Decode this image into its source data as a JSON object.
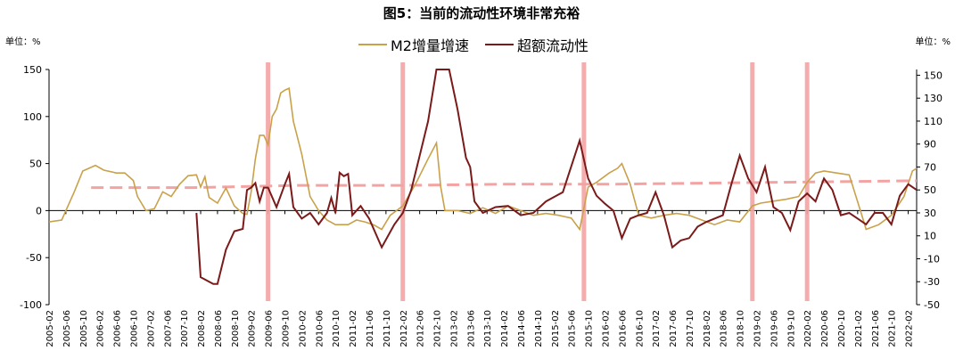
{
  "chart_data": {
    "type": "line",
    "title": "图5：当前的流动性环境非常充裕",
    "unit_left": "单位：%",
    "unit_right": "单位：%",
    "left_axis": {
      "ylim": [
        -100,
        150
      ],
      "ticks": [
        -100,
        -50,
        0,
        50,
        100,
        150
      ]
    },
    "right_axis": {
      "ylim": [
        -50,
        155
      ],
      "ticks": [
        -50,
        -30,
        -10,
        10,
        30,
        50,
        70,
        90,
        110,
        130,
        150
      ]
    },
    "x_tick_labels": [
      "2005-02",
      "2005-06",
      "2005-10",
      "2006-02",
      "2006-06",
      "2006-10",
      "2007-02",
      "2007-06",
      "2007-10",
      "2008-02",
      "2008-06",
      "2008-10",
      "2009-02",
      "2009-06",
      "2009-10",
      "2010-02",
      "2010-06",
      "2010-10",
      "2011-02",
      "2011-06",
      "2011-10",
      "2012-02",
      "2012-06",
      "2012-10",
      "2013-02",
      "2013-06",
      "2013-10",
      "2014-02",
      "2014-06",
      "2014-10",
      "2015-02",
      "2015-06",
      "2015-10",
      "2016-02",
      "2016-06",
      "2016-10",
      "2017-02",
      "2017-06",
      "2017-10",
      "2018-02",
      "2018-06",
      "2018-10",
      "2019-02",
      "2019-06",
      "2019-10",
      "2020-02",
      "2020-06",
      "2020-10",
      "2021-02",
      "2021-06",
      "2021-10",
      "2022-02"
    ],
    "series": [
      {
        "name": "M2增量增速",
        "axis": "left",
        "color": "#c9a14a",
        "points": [
          [
            "2005-02",
            -12
          ],
          [
            "2005-05",
            -10
          ],
          [
            "2005-08",
            20
          ],
          [
            "2005-10",
            42
          ],
          [
            "2006-01",
            48
          ],
          [
            "2006-03",
            43
          ],
          [
            "2006-06",
            40
          ],
          [
            "2006-08",
            40
          ],
          [
            "2006-10",
            32
          ],
          [
            "2006-11",
            15
          ],
          [
            "2007-01",
            0
          ],
          [
            "2007-03",
            2
          ],
          [
            "2007-05",
            20
          ],
          [
            "2007-07",
            15
          ],
          [
            "2007-09",
            28
          ],
          [
            "2007-11",
            37
          ],
          [
            "2008-01",
            38
          ],
          [
            "2008-02",
            25
          ],
          [
            "2008-03",
            36
          ],
          [
            "2008-04",
            14
          ],
          [
            "2008-06",
            8
          ],
          [
            "2008-08",
            24
          ],
          [
            "2008-10",
            5
          ],
          [
            "2008-12",
            -3
          ],
          [
            "2009-01",
            -4
          ],
          [
            "2009-02",
            20
          ],
          [
            "2009-03",
            55
          ],
          [
            "2009-04",
            80
          ],
          [
            "2009-05",
            80
          ],
          [
            "2009-06",
            70
          ],
          [
            "2009-07",
            100
          ],
          [
            "2009-08",
            108
          ],
          [
            "2009-09",
            125
          ],
          [
            "2009-10",
            128
          ],
          [
            "2009-11",
            130
          ],
          [
            "2009-12",
            95
          ],
          [
            "2010-02",
            60
          ],
          [
            "2010-04",
            15
          ],
          [
            "2010-06",
            0
          ],
          [
            "2010-08",
            -10
          ],
          [
            "2010-10",
            -15
          ],
          [
            "2011-01",
            -15
          ],
          [
            "2011-03",
            -10
          ],
          [
            "2011-05",
            -12
          ],
          [
            "2011-07",
            -15
          ],
          [
            "2011-09",
            -20
          ],
          [
            "2011-11",
            -5
          ],
          [
            "2012-02",
            5
          ],
          [
            "2012-05",
            28
          ],
          [
            "2012-08",
            55
          ],
          [
            "2012-10",
            72
          ],
          [
            "2012-11",
            25
          ],
          [
            "2012-12",
            0
          ],
          [
            "2013-03",
            0
          ],
          [
            "2013-06",
            -3
          ],
          [
            "2013-09",
            3
          ],
          [
            "2013-12",
            -3
          ],
          [
            "2014-03",
            5
          ],
          [
            "2014-06",
            0
          ],
          [
            "2014-09",
            -5
          ],
          [
            "2014-12",
            -3
          ],
          [
            "2015-03",
            -5
          ],
          [
            "2015-06",
            -8
          ],
          [
            "2015-08",
            -20
          ],
          [
            "2015-10",
            25
          ],
          [
            "2015-12",
            30
          ],
          [
            "2016-03",
            40
          ],
          [
            "2016-05",
            45
          ],
          [
            "2016-06",
            50
          ],
          [
            "2016-08",
            28
          ],
          [
            "2016-10",
            -5
          ],
          [
            "2017-01",
            -8
          ],
          [
            "2017-04",
            -5
          ],
          [
            "2017-07",
            -3
          ],
          [
            "2017-10",
            -5
          ],
          [
            "2018-01",
            -10
          ],
          [
            "2018-04",
            -15
          ],
          [
            "2018-07",
            -10
          ],
          [
            "2018-10",
            -12
          ],
          [
            "2019-01",
            5
          ],
          [
            "2019-03",
            8
          ],
          [
            "2019-06",
            10
          ],
          [
            "2019-09",
            12
          ],
          [
            "2019-12",
            15
          ],
          [
            "2020-02",
            30
          ],
          [
            "2020-04",
            40
          ],
          [
            "2020-06",
            42
          ],
          [
            "2020-09",
            40
          ],
          [
            "2020-12",
            38
          ],
          [
            "2021-03",
            -5
          ],
          [
            "2021-04",
            -20
          ],
          [
            "2021-07",
            -15
          ],
          [
            "2021-10",
            -5
          ],
          [
            "2022-01",
            15
          ],
          [
            "2022-03",
            42
          ],
          [
            "2022-04",
            45
          ]
        ]
      },
      {
        "name": "超额流动性",
        "axis": "right",
        "color": "#7a1a1a",
        "points": [
          [
            "2008-01",
            30
          ],
          [
            "2008-02",
            -26
          ],
          [
            "2008-04",
            -30
          ],
          [
            "2008-05",
            -32
          ],
          [
            "2008-06",
            -32
          ],
          [
            "2008-08",
            -2
          ],
          [
            "2008-10",
            14
          ],
          [
            "2008-12",
            16
          ],
          [
            "2009-01",
            50
          ],
          [
            "2009-02",
            52
          ],
          [
            "2009-03",
            56
          ],
          [
            "2009-04",
            40
          ],
          [
            "2009-05",
            52
          ],
          [
            "2009-06",
            52
          ],
          [
            "2009-08",
            35
          ],
          [
            "2009-10",
            55
          ],
          [
            "2009-11",
            64
          ],
          [
            "2009-12",
            35
          ],
          [
            "2010-02",
            25
          ],
          [
            "2010-04",
            30
          ],
          [
            "2010-06",
            20
          ],
          [
            "2010-08",
            30
          ],
          [
            "2010-09",
            43
          ],
          [
            "2010-10",
            30
          ],
          [
            "2010-11",
            65
          ],
          [
            "2010-12",
            62
          ],
          [
            "2011-01",
            64
          ],
          [
            "2011-02",
            28
          ],
          [
            "2011-04",
            36
          ],
          [
            "2011-06",
            25
          ],
          [
            "2011-09",
            0
          ],
          [
            "2011-12",
            20
          ],
          [
            "2012-02",
            30
          ],
          [
            "2012-04",
            50
          ],
          [
            "2012-06",
            80
          ],
          [
            "2012-08",
            110
          ],
          [
            "2012-10",
            155
          ],
          [
            "2013-01",
            155
          ],
          [
            "2013-03",
            120
          ],
          [
            "2013-05",
            78
          ],
          [
            "2013-06",
            70
          ],
          [
            "2013-07",
            40
          ],
          [
            "2013-09",
            30
          ],
          [
            "2013-12",
            35
          ],
          [
            "2014-03",
            36
          ],
          [
            "2014-06",
            28
          ],
          [
            "2014-09",
            30
          ],
          [
            "2014-12",
            40
          ],
          [
            "2015-02",
            44
          ],
          [
            "2015-04",
            48
          ],
          [
            "2015-08",
            93
          ],
          [
            "2015-10",
            60
          ],
          [
            "2015-12",
            45
          ],
          [
            "2016-02",
            38
          ],
          [
            "2016-04",
            32
          ],
          [
            "2016-06",
            8
          ],
          [
            "2016-08",
            25
          ],
          [
            "2016-10",
            28
          ],
          [
            "2016-12",
            30
          ],
          [
            "2017-02",
            48
          ],
          [
            "2017-04",
            28
          ],
          [
            "2017-06",
            0
          ],
          [
            "2017-08",
            6
          ],
          [
            "2017-10",
            8
          ],
          [
            "2017-12",
            18
          ],
          [
            "2018-02",
            22
          ],
          [
            "2018-04",
            25
          ],
          [
            "2018-06",
            28
          ],
          [
            "2018-08",
            55
          ],
          [
            "2018-10",
            80
          ],
          [
            "2018-12",
            60
          ],
          [
            "2019-02",
            48
          ],
          [
            "2019-04",
            70
          ],
          [
            "2019-06",
            35
          ],
          [
            "2019-08",
            30
          ],
          [
            "2019-10",
            15
          ],
          [
            "2019-12",
            40
          ],
          [
            "2020-02",
            47
          ],
          [
            "2020-04",
            40
          ],
          [
            "2020-06",
            60
          ],
          [
            "2020-08",
            50
          ],
          [
            "2020-10",
            28
          ],
          [
            "2020-12",
            30
          ],
          [
            "2021-02",
            25
          ],
          [
            "2021-04",
            20
          ],
          [
            "2021-06",
            30
          ],
          [
            "2021-08",
            30
          ],
          [
            "2021-10",
            20
          ],
          [
            "2021-12",
            45
          ],
          [
            "2022-02",
            55
          ],
          [
            "2022-04",
            50
          ]
        ]
      }
    ],
    "reference_lines": [
      {
        "axis": "right",
        "from": "2005-12",
        "to": "2022-04",
        "values": [
          52,
          52,
          54,
          54,
          55,
          55,
          56,
          57,
          58
        ]
      },
      {
        "note": "dashed red horizontal band"
      }
    ],
    "vertical_markers": [
      "2009-06",
      "2012-02",
      "2015-09",
      "2019-01",
      "2020-02"
    ],
    "grid": false,
    "legend_position": "top-center"
  }
}
